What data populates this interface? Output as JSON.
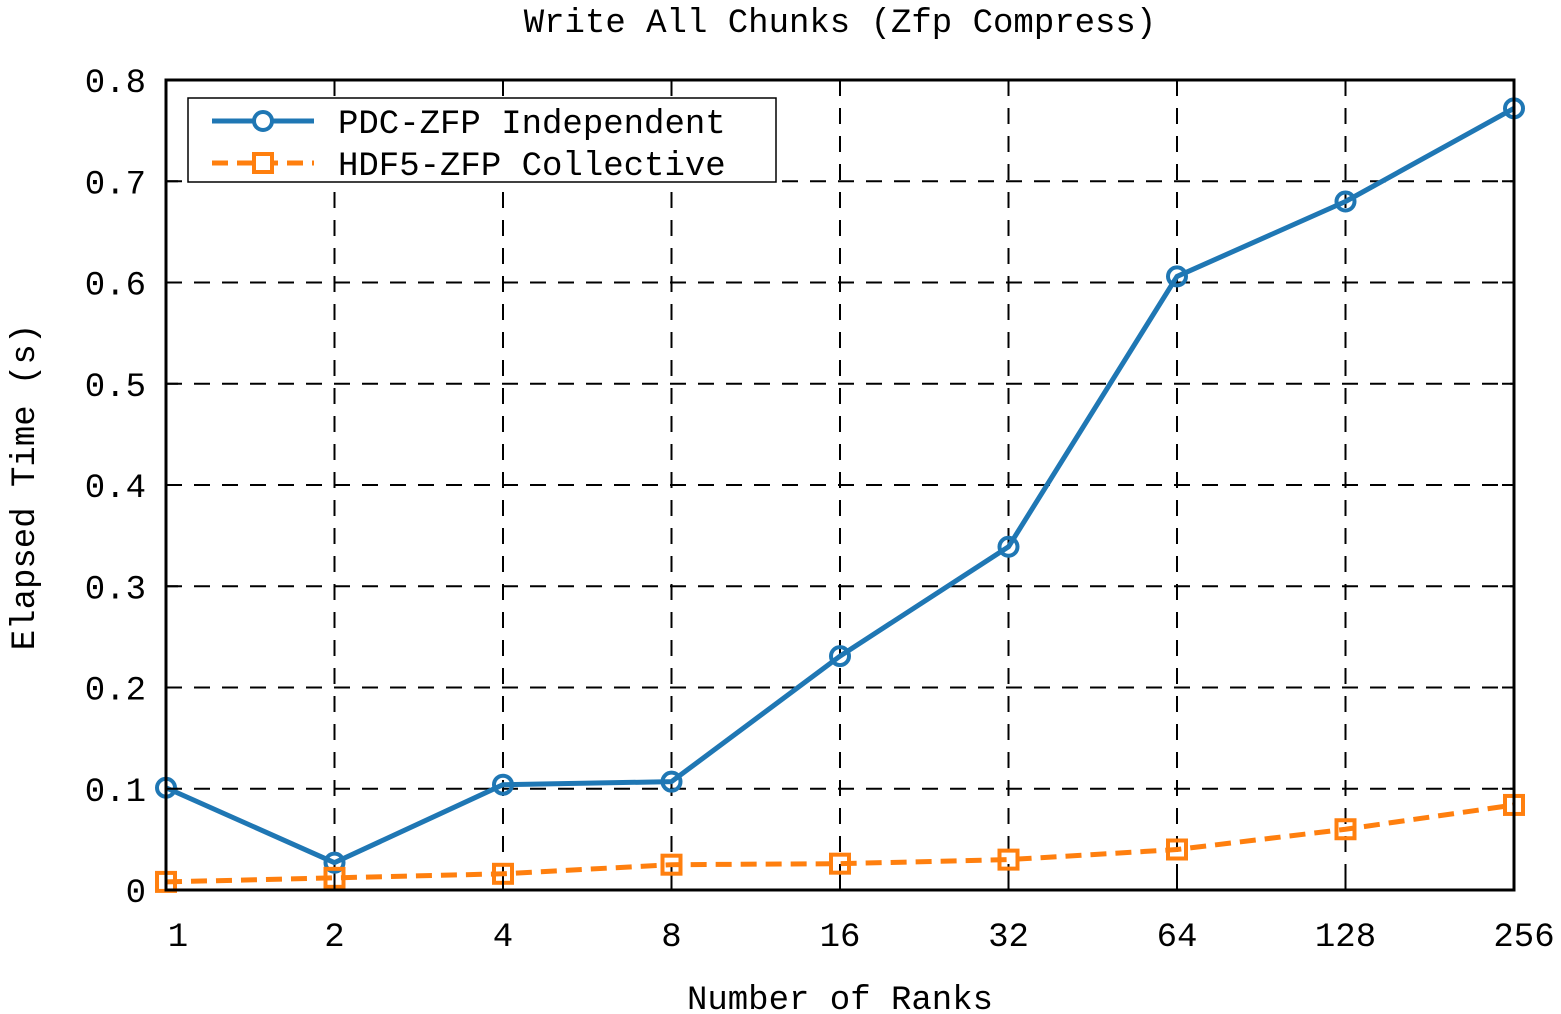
{
  "chart_data": {
    "type": "line",
    "title": "Write All Chunks (Zfp Compress)",
    "xlabel": "Number of Ranks",
    "ylabel": "Elapsed Time (s)",
    "categories": [
      "1",
      "2",
      "4",
      "8",
      "16",
      "32",
      "64",
      "128",
      "256"
    ],
    "y_ticks": [
      "0",
      "0.1",
      "0.2",
      "0.3",
      "0.4",
      "0.5",
      "0.6",
      "0.7",
      "0.8"
    ],
    "ylim": [
      0,
      0.8
    ],
    "grid": true,
    "legend_position": "top-left",
    "series": [
      {
        "name": "PDC-ZFP Independent",
        "values": [
          0.101,
          0.027,
          0.104,
          0.107,
          0.231,
          0.339,
          0.606,
          0.68,
          0.772
        ],
        "color": "#1f77b4",
        "line_style": "solid",
        "marker": "circle"
      },
      {
        "name": "HDF5-ZFP Collective",
        "values": [
          0.008,
          0.012,
          0.016,
          0.025,
          0.026,
          0.03,
          0.04,
          0.06,
          0.084
        ],
        "color": "#ff7f0e",
        "line_style": "dashed",
        "marker": "square"
      }
    ]
  }
}
